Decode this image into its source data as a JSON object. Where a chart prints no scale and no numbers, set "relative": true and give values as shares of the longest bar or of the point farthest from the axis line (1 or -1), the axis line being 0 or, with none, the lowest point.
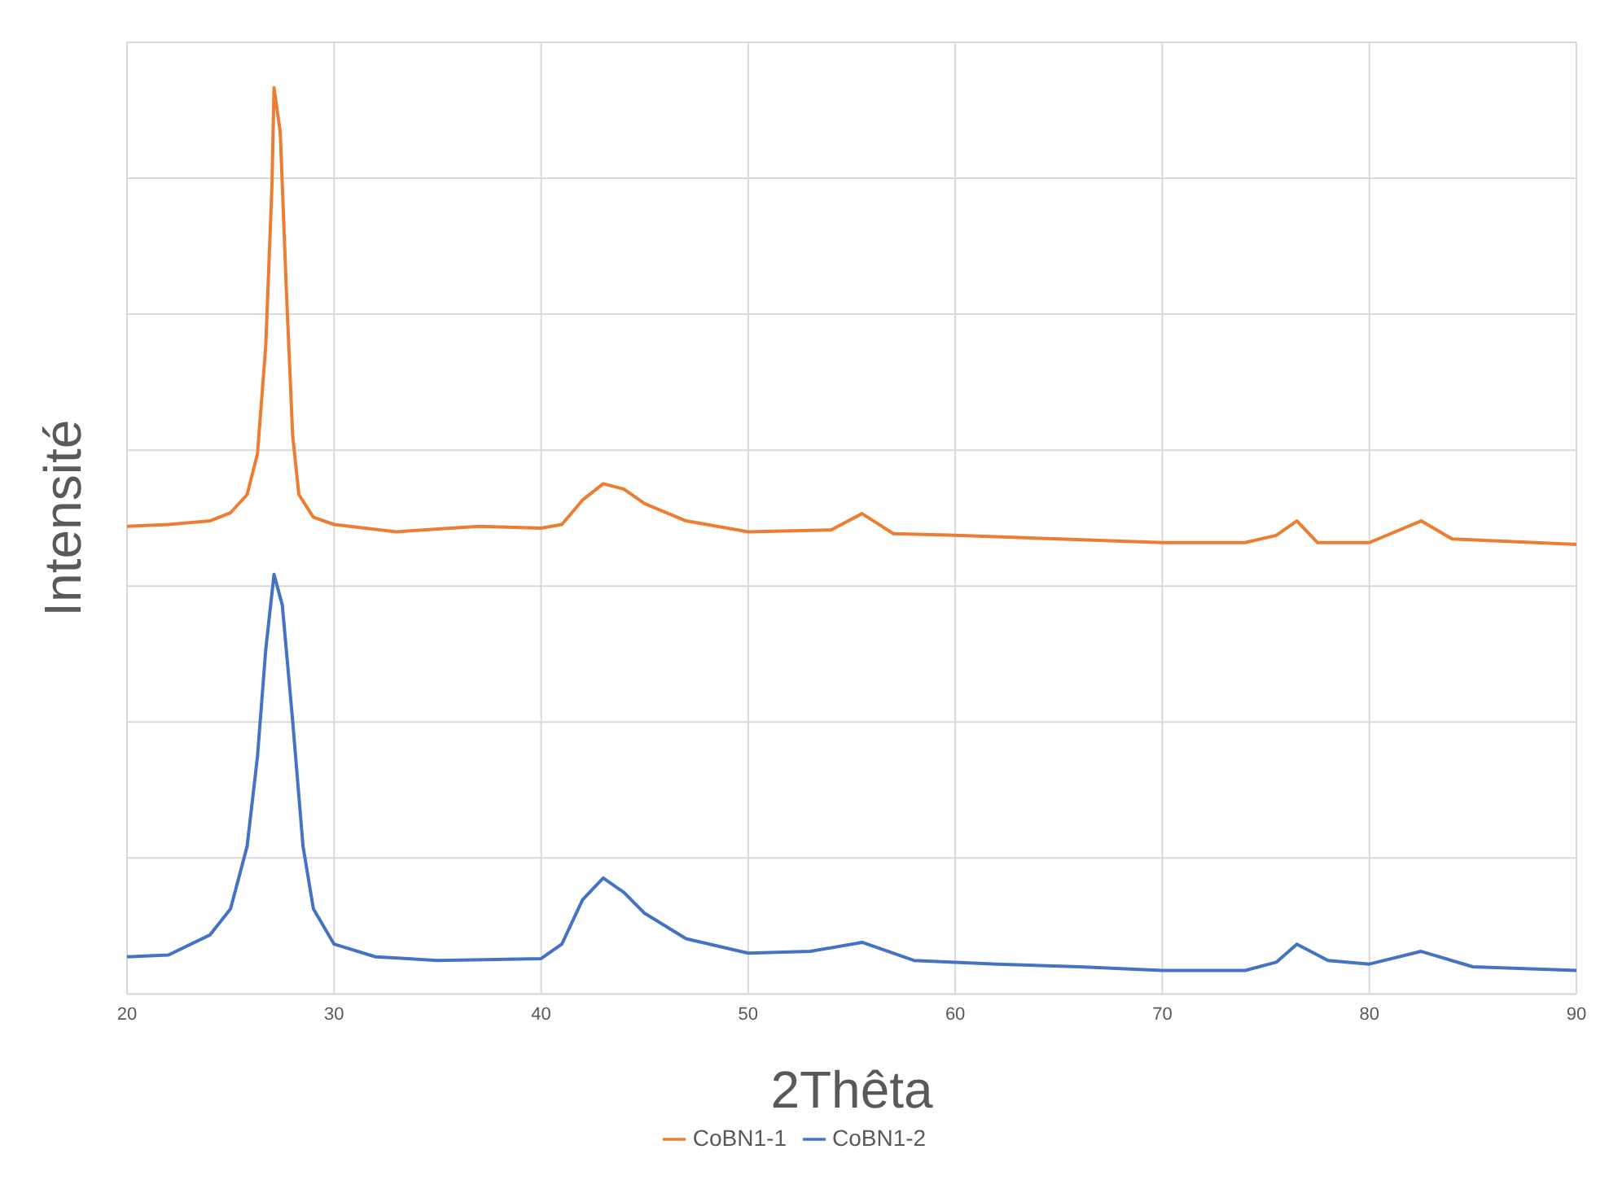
{
  "chart_data": {
    "type": "line",
    "relative": true,
    "xlabel": "2Thêta",
    "ylabel": "Intensité",
    "xlim": [
      20,
      90
    ],
    "xticks": [
      20,
      30,
      40,
      50,
      60,
      70,
      80,
      90
    ],
    "grid": true,
    "legend": "bottom",
    "marker": "none",
    "line_style": "solid",
    "tick_labels": "x",
    "series": [
      {
        "name": "CoBN1-1",
        "color": "#ed7d31",
        "x": [
          20,
          22,
          24,
          25,
          25.8,
          26.3,
          26.7,
          27,
          27.1,
          27.4,
          27.7,
          28,
          28.3,
          29,
          30,
          33,
          37,
          40,
          41,
          42,
          43,
          44,
          45,
          47,
          50,
          54,
          55.5,
          57,
          60,
          65,
          70,
          74,
          75.5,
          76.5,
          77.5,
          80,
          82.5,
          84,
          90
        ],
        "values": [
          0.516,
          0.518,
          0.522,
          0.531,
          0.551,
          0.596,
          0.715,
          0.892,
          1.0,
          0.951,
          0.774,
          0.616,
          0.551,
          0.526,
          0.518,
          0.51,
          0.516,
          0.514,
          0.518,
          0.545,
          0.563,
          0.557,
          0.541,
          0.522,
          0.51,
          0.512,
          0.53,
          0.508,
          0.506,
          0.502,
          0.498,
          0.498,
          0.506,
          0.522,
          0.498,
          0.498,
          0.522,
          0.502,
          0.496
        ]
      },
      {
        "name": "CoBN1-2",
        "color": "#4472c4",
        "x": [
          20,
          22,
          24,
          25,
          25.8,
          26.3,
          26.7,
          27.1,
          27.5,
          28,
          28.5,
          29,
          30,
          32,
          35,
          40,
          41,
          42,
          43,
          44,
          45,
          47,
          50,
          53,
          55.5,
          58,
          62,
          66,
          70,
          74,
          75.5,
          76.5,
          78,
          80,
          82.5,
          85,
          90
        ],
        "values": [
          0.041,
          0.043,
          0.065,
          0.094,
          0.163,
          0.262,
          0.38,
          0.463,
          0.429,
          0.301,
          0.163,
          0.094,
          0.055,
          0.041,
          0.037,
          0.039,
          0.055,
          0.104,
          0.128,
          0.112,
          0.089,
          0.061,
          0.045,
          0.047,
          0.057,
          0.037,
          0.033,
          0.03,
          0.026,
          0.026,
          0.035,
          0.055,
          0.037,
          0.033,
          0.047,
          0.03,
          0.026
        ]
      }
    ]
  }
}
